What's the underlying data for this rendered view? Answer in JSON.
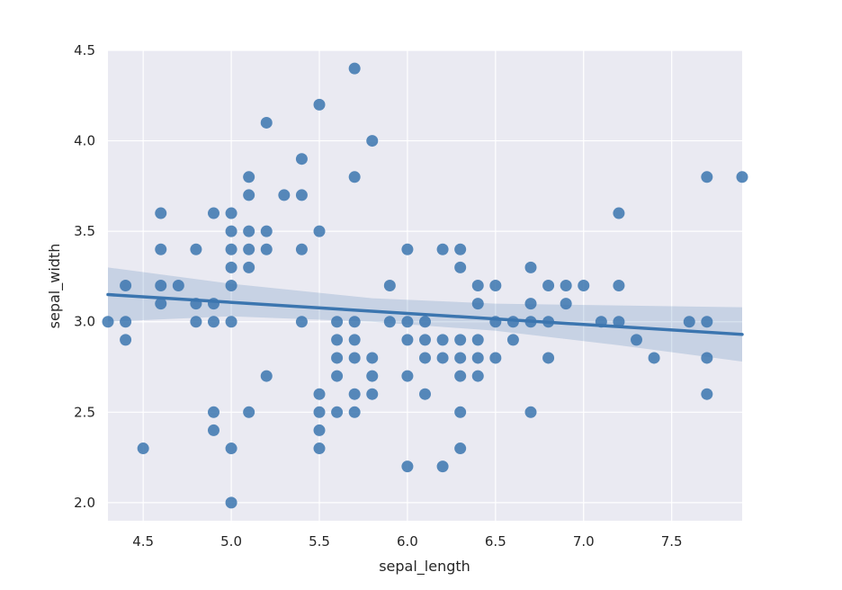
{
  "chart_data": {
    "type": "scatter",
    "title": "",
    "xlabel": "sepal_length",
    "ylabel": "sepal_width",
    "xlim": [
      4.3,
      7.9
    ],
    "ylim": [
      1.9,
      4.5
    ],
    "xticks": [
      "4.5",
      "5.0",
      "5.5",
      "6.0",
      "6.5",
      "7.0",
      "7.5"
    ],
    "yticks": [
      "2.0",
      "2.5",
      "3.0",
      "3.5",
      "4.0",
      "4.5"
    ],
    "grid": true,
    "background_color": "#eaeaf2",
    "point_color": "#3b75af",
    "points": [
      [
        4.3,
        3.0
      ],
      [
        4.4,
        2.9
      ],
      [
        4.4,
        3.0
      ],
      [
        4.4,
        3.2
      ],
      [
        4.5,
        2.3
      ],
      [
        4.6,
        3.1
      ],
      [
        4.6,
        3.2
      ],
      [
        4.6,
        3.4
      ],
      [
        4.6,
        3.6
      ],
      [
        4.7,
        3.2
      ],
      [
        4.8,
        3.0
      ],
      [
        4.8,
        3.1
      ],
      [
        4.8,
        3.4
      ],
      [
        4.9,
        2.4
      ],
      [
        4.9,
        2.5
      ],
      [
        4.9,
        3.0
      ],
      [
        4.9,
        3.1
      ],
      [
        4.9,
        3.6
      ],
      [
        5.0,
        2.0
      ],
      [
        5.0,
        2.3
      ],
      [
        5.0,
        3.0
      ],
      [
        5.0,
        3.2
      ],
      [
        5.0,
        3.3
      ],
      [
        5.0,
        3.4
      ],
      [
        5.0,
        3.5
      ],
      [
        5.0,
        3.6
      ],
      [
        5.1,
        2.5
      ],
      [
        5.1,
        3.3
      ],
      [
        5.1,
        3.4
      ],
      [
        5.1,
        3.5
      ],
      [
        5.1,
        3.7
      ],
      [
        5.1,
        3.8
      ],
      [
        5.2,
        2.7
      ],
      [
        5.2,
        3.4
      ],
      [
        5.2,
        3.5
      ],
      [
        5.2,
        4.1
      ],
      [
        5.3,
        3.7
      ],
      [
        5.4,
        3.0
      ],
      [
        5.4,
        3.4
      ],
      [
        5.4,
        3.7
      ],
      [
        5.4,
        3.9
      ],
      [
        5.5,
        2.3
      ],
      [
        5.5,
        2.4
      ],
      [
        5.5,
        2.5
      ],
      [
        5.5,
        2.6
      ],
      [
        5.5,
        3.5
      ],
      [
        5.5,
        4.2
      ],
      [
        5.6,
        2.5
      ],
      [
        5.6,
        2.7
      ],
      [
        5.6,
        2.8
      ],
      [
        5.6,
        2.9
      ],
      [
        5.6,
        3.0
      ],
      [
        5.7,
        2.5
      ],
      [
        5.7,
        2.6
      ],
      [
        5.7,
        2.8
      ],
      [
        5.7,
        2.9
      ],
      [
        5.7,
        3.0
      ],
      [
        5.7,
        3.8
      ],
      [
        5.7,
        4.4
      ],
      [
        5.8,
        2.6
      ],
      [
        5.8,
        2.7
      ],
      [
        5.8,
        2.8
      ],
      [
        5.8,
        4.0
      ],
      [
        5.9,
        3.0
      ],
      [
        5.9,
        3.2
      ],
      [
        6.0,
        2.2
      ],
      [
        6.0,
        2.7
      ],
      [
        6.0,
        2.9
      ],
      [
        6.0,
        3.0
      ],
      [
        6.0,
        3.4
      ],
      [
        6.1,
        2.6
      ],
      [
        6.1,
        2.8
      ],
      [
        6.1,
        2.9
      ],
      [
        6.1,
        3.0
      ],
      [
        6.2,
        2.2
      ],
      [
        6.2,
        2.8
      ],
      [
        6.2,
        2.9
      ],
      [
        6.2,
        3.4
      ],
      [
        6.3,
        2.3
      ],
      [
        6.3,
        2.5
      ],
      [
        6.3,
        2.7
      ],
      [
        6.3,
        2.8
      ],
      [
        6.3,
        2.9
      ],
      [
        6.3,
        3.3
      ],
      [
        6.3,
        3.4
      ],
      [
        6.4,
        2.7
      ],
      [
        6.4,
        2.8
      ],
      [
        6.4,
        2.9
      ],
      [
        6.4,
        3.1
      ],
      [
        6.4,
        3.2
      ],
      [
        6.5,
        2.8
      ],
      [
        6.5,
        3.0
      ],
      [
        6.5,
        3.2
      ],
      [
        6.6,
        2.9
      ],
      [
        6.6,
        3.0
      ],
      [
        6.7,
        2.5
      ],
      [
        6.7,
        3.0
      ],
      [
        6.7,
        3.1
      ],
      [
        6.7,
        3.3
      ],
      [
        6.8,
        2.8
      ],
      [
        6.8,
        3.0
      ],
      [
        6.8,
        3.2
      ],
      [
        6.9,
        3.1
      ],
      [
        6.9,
        3.2
      ],
      [
        7.0,
        3.2
      ],
      [
        7.1,
        3.0
      ],
      [
        7.2,
        3.0
      ],
      [
        7.2,
        3.2
      ],
      [
        7.2,
        3.6
      ],
      [
        7.3,
        2.9
      ],
      [
        7.4,
        2.8
      ],
      [
        7.6,
        3.0
      ],
      [
        7.7,
        2.6
      ],
      [
        7.7,
        2.8
      ],
      [
        7.7,
        3.0
      ],
      [
        7.7,
        3.8
      ],
      [
        7.9,
        3.8
      ]
    ],
    "regression": {
      "line": [
        [
          4.3,
          3.15
        ],
        [
          7.9,
          2.93
        ]
      ],
      "ci_upper": [
        [
          4.3,
          3.3
        ],
        [
          5.0,
          3.21
        ],
        [
          5.8,
          3.13
        ],
        [
          6.5,
          3.1
        ],
        [
          7.2,
          3.09
        ],
        [
          7.9,
          3.08
        ]
      ],
      "ci_lower": [
        [
          4.3,
          3.0
        ],
        [
          5.0,
          3.03
        ],
        [
          5.8,
          3.0
        ],
        [
          6.5,
          2.95
        ],
        [
          7.2,
          2.87
        ],
        [
          7.9,
          2.78
        ]
      ]
    }
  }
}
